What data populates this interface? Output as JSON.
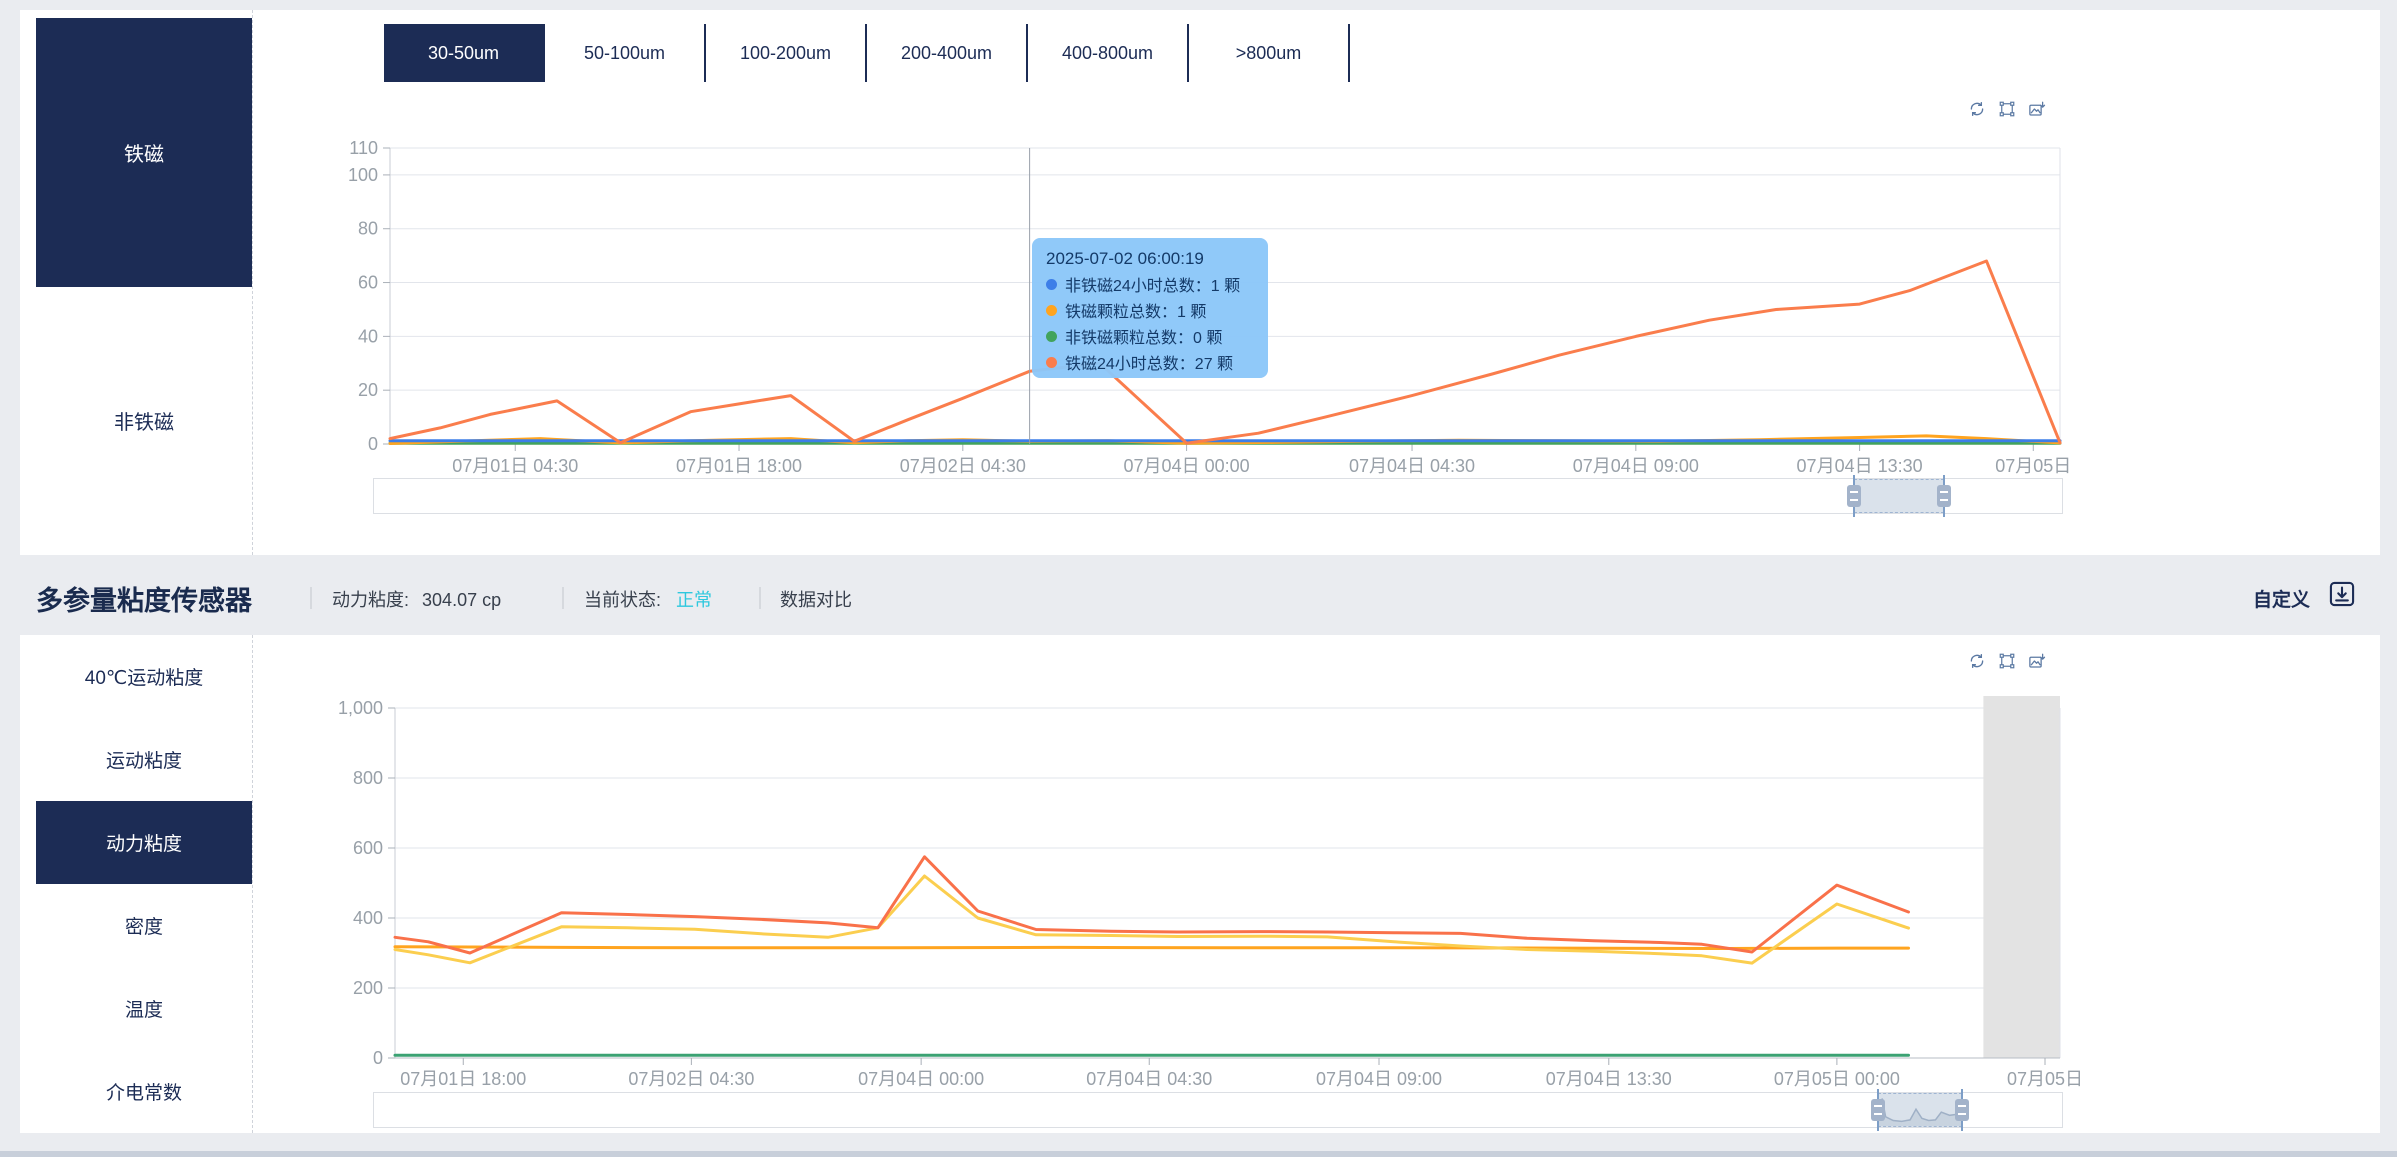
{
  "colors": {
    "accent_navy": "#1c2c55",
    "status_ok": "#2ec8de",
    "tooltip_bg": "#8cc7f9",
    "shaded_band": "#e3e3e3"
  },
  "top_panel": {
    "tabs": [
      {
        "label": "30-50um",
        "selected": true
      },
      {
        "label": "50-100um",
        "selected": false
      },
      {
        "label": "100-200um",
        "selected": false
      },
      {
        "label": "200-400um",
        "selected": false
      },
      {
        "label": "400-800um",
        "selected": false
      },
      {
        "label": ">800um",
        "selected": false
      }
    ],
    "sidebar": [
      {
        "label": "铁磁",
        "selected": true
      },
      {
        "label": "非铁磁",
        "selected": false
      }
    ],
    "toolbox": [
      "restore",
      "box-select",
      "save-image"
    ],
    "tooltip": {
      "title": "2025-07-02 06:00:19",
      "rows": [
        {
          "color": "#3d7ee8",
          "label": "非铁磁24小时总数：",
          "value": "1 颗"
        },
        {
          "color": "#ffa41f",
          "label": "铁磁颗粒总数：",
          "value": "1 颗"
        },
        {
          "color": "#42a35c",
          "label": "非铁磁颗粒总数：",
          "value": "0 颗"
        },
        {
          "color": "#fa7d4c",
          "label": "铁磁24小时总数：",
          "value": "27 颗"
        }
      ]
    },
    "slider": {
      "selection_percent": [
        87.7,
        93.0
      ]
    }
  },
  "section_header": {
    "title": "多参量粘度传感器",
    "metric_label": "动力粘度:",
    "metric_value": "304.07 cp",
    "status_label": "当前状态:",
    "status_value": "正常",
    "compare_label": "数据对比",
    "custom_label": "自定义"
  },
  "bottom_panel": {
    "sidebar": [
      {
        "label": "40℃运动粘度",
        "selected": false
      },
      {
        "label": "运动粘度",
        "selected": false
      },
      {
        "label": "动力粘度",
        "selected": true
      },
      {
        "label": "密度",
        "selected": false
      },
      {
        "label": "温度",
        "selected": false
      },
      {
        "label": "介电常数",
        "selected": false
      }
    ],
    "toolbox": [
      "restore",
      "box-select",
      "save-image"
    ],
    "slider": {
      "selection_percent": [
        89.1,
        94.1
      ],
      "preview_points": [
        [
          0,
          0.15
        ],
        [
          0.05,
          0.9
        ],
        [
          0.09,
          0.3
        ],
        [
          0.18,
          0.18
        ],
        [
          0.28,
          0.15
        ],
        [
          0.38,
          0.2
        ],
        [
          0.45,
          0.55
        ],
        [
          0.52,
          0.25
        ],
        [
          0.6,
          0.18
        ],
        [
          0.68,
          0.2
        ],
        [
          0.75,
          0.45
        ],
        [
          0.85,
          0.35
        ],
        [
          0.93,
          0.38
        ],
        [
          1,
          0.32
        ]
      ]
    }
  },
  "chart_data": [
    {
      "type": "line",
      "ylim": [
        0,
        110
      ],
      "y_ticks": [
        0,
        20,
        40,
        60,
        80,
        100,
        110
      ],
      "y_tick_labels": [
        "0",
        "20",
        "40",
        "60",
        "80",
        "100",
        "110"
      ],
      "x_tick_labels": [
        "07月01日 04:30",
        "07月01日 18:00",
        "07月02日 04:30",
        "07月04日 00:00",
        "07月04日 04:30",
        "07月04日 09:00",
        "07月04日 13:30",
        "07月05日"
      ],
      "x_tick_percents": [
        7.5,
        20.9,
        34.3,
        47.7,
        61.2,
        74.6,
        88.0,
        98.4
      ],
      "grid": true,
      "legend_position": "none",
      "crosshair_percent": 38.3,
      "series": [
        {
          "name": "非铁磁颗粒总数",
          "color": "#42a35c",
          "points": [
            [
              0,
              0.3
            ],
            [
              100,
              0.3
            ]
          ]
        },
        {
          "name": "铁磁颗粒总数",
          "color": "#ffa41f",
          "points": [
            [
              0,
              0.2
            ],
            [
              5,
              1.2
            ],
            [
              9,
              2
            ],
            [
              13.8,
              0.4
            ],
            [
              18,
              1.2
            ],
            [
              22,
              1.8
            ],
            [
              24,
              2
            ],
            [
              27.8,
              0.5
            ],
            [
              31,
              1.2
            ],
            [
              34.3,
              1.6
            ],
            [
              38.3,
              1
            ],
            [
              43,
              1.2
            ],
            [
              47.7,
              0.3
            ],
            [
              53,
              0.6
            ],
            [
              58,
              1
            ],
            [
              64,
              1.4
            ],
            [
              70,
              1.2
            ],
            [
              76,
              1
            ],
            [
              82,
              1.6
            ],
            [
              88,
              2.4
            ],
            [
              92,
              3
            ],
            [
              95.6,
              2
            ],
            [
              100,
              0.4
            ]
          ]
        },
        {
          "name": "非铁磁24小时总数",
          "color": "#3d7ee8",
          "points": [
            [
              0,
              1.2
            ],
            [
              100,
              1.2
            ]
          ]
        },
        {
          "name": "铁磁24小时总数",
          "color": "#fa7d4c",
          "points": [
            [
              0,
              2
            ],
            [
              3,
              6
            ],
            [
              6,
              11
            ],
            [
              10,
              16
            ],
            [
              13.8,
              0.5
            ],
            [
              18,
              12
            ],
            [
              21,
              15
            ],
            [
              24,
              18
            ],
            [
              27.8,
              1
            ],
            [
              31,
              9
            ],
            [
              34.3,
              17
            ],
            [
              38.3,
              27
            ],
            [
              42.5,
              30
            ],
            [
              47.7,
              0.3
            ],
            [
              52,
              4
            ],
            [
              56,
              10
            ],
            [
              61.2,
              18
            ],
            [
              66,
              26
            ],
            [
              70,
              33
            ],
            [
              74.6,
              40
            ],
            [
              79,
              46
            ],
            [
              83,
              50
            ],
            [
              88,
              52
            ],
            [
              91,
              57
            ],
            [
              95.6,
              68
            ],
            [
              100,
              0.5
            ]
          ]
        }
      ]
    },
    {
      "type": "line",
      "ylim": [
        0,
        1000
      ],
      "y_ticks": [
        0,
        200,
        400,
        600,
        800,
        1000
      ],
      "y_tick_labels": [
        "0",
        "200",
        "400",
        "600",
        "800",
        "1,000"
      ],
      "x_tick_labels": [
        "07月01日 18:00",
        "07月02日 04:30",
        "07月04日 00:00",
        "07月04日 04:30",
        "07月04日 09:00",
        "07月04日 13:30",
        "07月05日 00:00",
        "07月05日"
      ],
      "x_tick_percents": [
        4.1,
        17.8,
        31.6,
        45.3,
        59.1,
        72.9,
        86.6,
        99.1
      ],
      "grid": true,
      "legend_position": "none",
      "data_end_percent": 90.9,
      "shaded_band_percent": [
        95.4,
        100
      ],
      "series": [
        {
          "name": "series-green",
          "color": "#3ba273",
          "points": [
            [
              0,
              8
            ],
            [
              90.9,
              8
            ]
          ]
        },
        {
          "name": "series-orange-flat",
          "color": "#ffa41f",
          "points": [
            [
              0,
              318
            ],
            [
              10,
              316
            ],
            [
              20,
              315
            ],
            [
              30,
              315
            ],
            [
              40,
              316
            ],
            [
              50,
              315
            ],
            [
              60,
              315
            ],
            [
              70,
              314
            ],
            [
              80,
              313
            ],
            [
              86.6,
              314
            ],
            [
              90.9,
              314
            ]
          ]
        },
        {
          "name": "series-yellow",
          "color": "#fbce4f",
          "points": [
            [
              0,
              310
            ],
            [
              2,
              295
            ],
            [
              4.5,
              272
            ],
            [
              10,
              375
            ],
            [
              14,
              372
            ],
            [
              18,
              368
            ],
            [
              22,
              355
            ],
            [
              26,
              345
            ],
            [
              29,
              372
            ],
            [
              31.8,
              520
            ],
            [
              35,
              400
            ],
            [
              38.5,
              352
            ],
            [
              43,
              350
            ],
            [
              47,
              347
            ],
            [
              52,
              348
            ],
            [
              56,
              346
            ],
            [
              60,
              332
            ],
            [
              64,
              320
            ],
            [
              68,
              310
            ],
            [
              72,
              305
            ],
            [
              76,
              298
            ],
            [
              78.5,
              292
            ],
            [
              81.5,
              271
            ],
            [
              86.6,
              440
            ],
            [
              90.9,
              371
            ]
          ]
        },
        {
          "name": "series-coral",
          "color": "#f9714a",
          "points": [
            [
              0,
              345
            ],
            [
              2,
              332
            ],
            [
              4.5,
              300
            ],
            [
              10,
              415
            ],
            [
              14,
              410
            ],
            [
              18,
              404
            ],
            [
              22,
              396
            ],
            [
              26,
              386
            ],
            [
              29,
              372
            ],
            [
              31.8,
              575
            ],
            [
              35,
              420
            ],
            [
              38.5,
              367
            ],
            [
              43,
              362
            ],
            [
              47,
              360
            ],
            [
              52,
              361
            ],
            [
              56,
              360
            ],
            [
              60,
              358
            ],
            [
              64,
              356
            ],
            [
              68,
              342
            ],
            [
              72,
              335
            ],
            [
              76,
              330
            ],
            [
              78.5,
              325
            ],
            [
              81.5,
              303
            ],
            [
              86.6,
              494
            ],
            [
              90.9,
              417
            ]
          ]
        }
      ]
    }
  ]
}
